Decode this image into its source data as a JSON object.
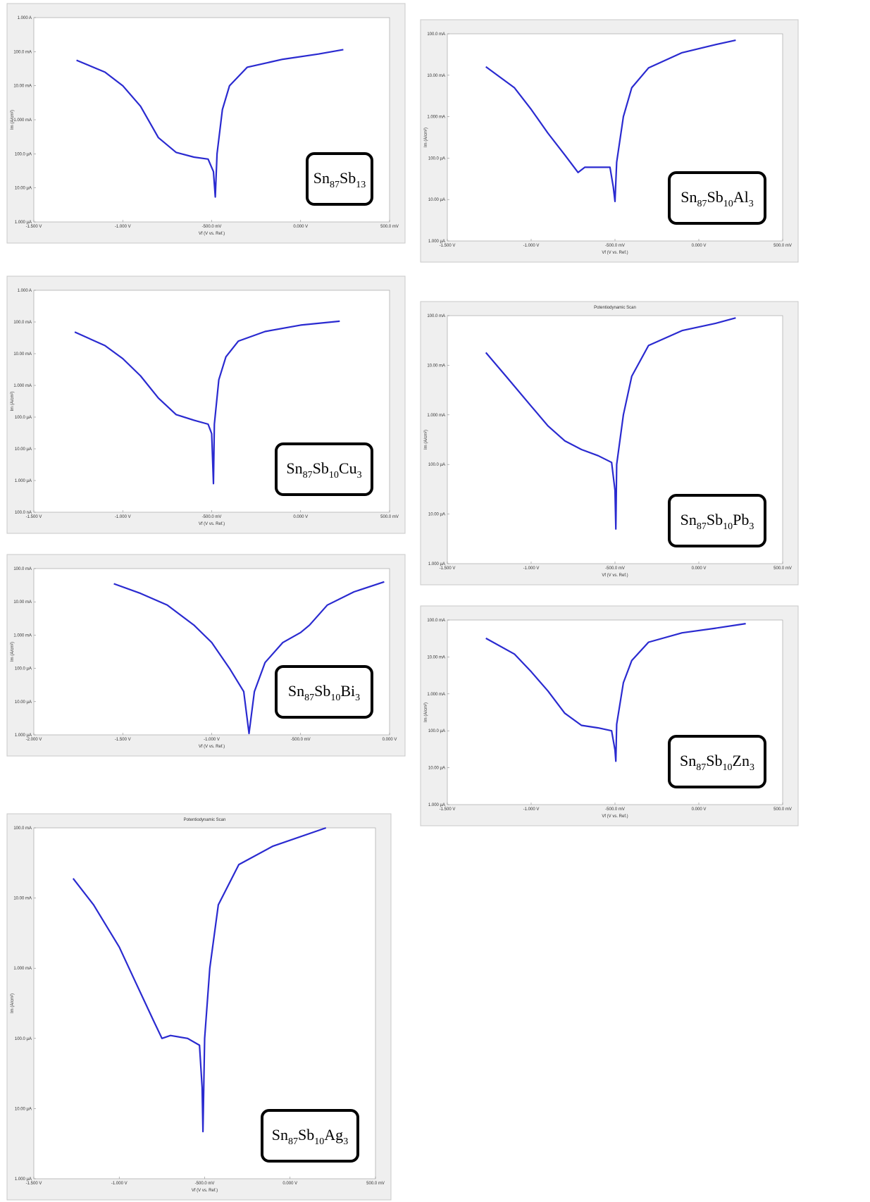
{
  "chart_data": [
    {
      "type": "line",
      "log_y": true,
      "grid": false,
      "color": "#2a2ad0",
      "xlabel": "Vf (V vs. Ref.)",
      "ylabel": "Im (A/cm²)",
      "x": [
        -1.26,
        -1.1,
        -1.0,
        -0.9,
        -0.8,
        -0.7,
        -0.6,
        -0.52,
        -0.49,
        -0.48,
        -0.47,
        -0.44,
        -0.4,
        -0.3,
        -0.1,
        0.1,
        0.24
      ],
      "values": [
        0.056,
        0.025,
        0.01,
        0.0025,
        0.0003,
        0.00011,
        8e-05,
        7e-05,
        3e-05,
        5.4e-06,
        0.0001,
        0.002,
        0.01,
        0.035,
        0.06,
        0.085,
        0.115
      ],
      "xlim": [
        -1.5,
        0.5
      ],
      "xticks": [
        {
          "value": -1.5,
          "label": "-1.500 V"
        },
        {
          "value": -1,
          "label": "-1.000 V"
        },
        {
          "value": -0.5,
          "label": "-500.0 mV"
        },
        {
          "value": 0,
          "label": "0.000 V"
        },
        {
          "value": 0.5,
          "label": "500.0 mV"
        }
      ],
      "ylim": [
        1e-06,
        1
      ],
      "yticks": [
        {
          "value": 1,
          "label": "1.000 A"
        },
        {
          "value": 0.1,
          "label": "100.0 mA"
        },
        {
          "value": 0.01,
          "label": "10.00 mA"
        },
        {
          "value": 0.001,
          "label": "1.000 mA"
        },
        {
          "value": 0.0001,
          "label": "100.0 µA"
        },
        {
          "value": 1e-05,
          "label": "10.00 µA"
        },
        {
          "value": 1e-06,
          "label": "1.000 µA"
        }
      ],
      "annotation": [
        {
          "text": "Sn",
          "sub": false
        },
        {
          "text": "87",
          "sub": true
        },
        {
          "text": "Sb",
          "sub": false
        },
        {
          "text": "13",
          "sub": true
        }
      ]
    },
    {
      "type": "line",
      "log_y": true,
      "grid": false,
      "color": "#2a2ad0",
      "xlabel": "Vf (V vs. Ref.)",
      "ylabel": "Im (A/cm²)",
      "x": [
        -1.27,
        -1.1,
        -1.0,
        -0.9,
        -0.8,
        -0.72,
        -0.68,
        -0.6,
        -0.53,
        -0.51,
        -0.5,
        -0.49,
        -0.45,
        -0.4,
        -0.3,
        -0.1,
        0.1,
        0.22
      ],
      "values": [
        0.016,
        0.005,
        0.0015,
        0.0004,
        0.00012,
        4.5e-05,
        6e-05,
        6e-05,
        6e-05,
        2e-05,
        9e-06,
        8e-05,
        0.001,
        0.005,
        0.015,
        0.035,
        0.055,
        0.07
      ],
      "xlim": [
        -1.5,
        0.5
      ],
      "xticks": [
        {
          "value": -1.5,
          "label": "-1.500 V"
        },
        {
          "value": -1,
          "label": "-1.000 V"
        },
        {
          "value": -0.5,
          "label": "-500.0 mV"
        },
        {
          "value": 0,
          "label": "0.000 V"
        },
        {
          "value": 0.5,
          "label": "500.0 mV"
        }
      ],
      "ylim": [
        1e-06,
        0.1
      ],
      "yticks": [
        {
          "value": 0.1,
          "label": "100.0 mA"
        },
        {
          "value": 0.01,
          "label": "10.00 mA"
        },
        {
          "value": 0.001,
          "label": "1.000 mA"
        },
        {
          "value": 0.0001,
          "label": "100.0 µA"
        },
        {
          "value": 1e-05,
          "label": "10.00 µA"
        },
        {
          "value": 1e-06,
          "label": "1.000 µA"
        }
      ],
      "annotation": [
        {
          "text": "Sn",
          "sub": false
        },
        {
          "text": "87",
          "sub": true
        },
        {
          "text": "Sb",
          "sub": false
        },
        {
          "text": "10",
          "sub": true
        },
        {
          "text": "Al",
          "sub": false
        },
        {
          "text": "3",
          "sub": true
        }
      ]
    },
    {
      "type": "line",
      "log_y": true,
      "grid": false,
      "color": "#2a2ad0",
      "xlabel": "Vf (V vs. Ref.)",
      "ylabel": "Im (A/cm²)",
      "x": [
        -1.27,
        -1.1,
        -1.0,
        -0.9,
        -0.8,
        -0.7,
        -0.6,
        -0.52,
        -0.5,
        -0.49,
        -0.485,
        -0.46,
        -0.42,
        -0.35,
        -0.2,
        0,
        0.22
      ],
      "values": [
        0.048,
        0.018,
        0.007,
        0.002,
        0.0004,
        0.00012,
        8e-05,
        6e-05,
        3e-05,
        8e-07,
        6e-05,
        0.0015,
        0.008,
        0.025,
        0.05,
        0.08,
        0.106
      ],
      "xlim": [
        -1.5,
        0.5
      ],
      "xticks": [
        {
          "value": -1.5,
          "label": "-1.500 V"
        },
        {
          "value": -1,
          "label": "-1.000 V"
        },
        {
          "value": -0.5,
          "label": "-500.0 mV"
        },
        {
          "value": 0,
          "label": "0.000 V"
        },
        {
          "value": 0.5,
          "label": "500.0 mV"
        }
      ],
      "ylim": [
        1e-07,
        1
      ],
      "yticks": [
        {
          "value": 1,
          "label": "1.000 A"
        },
        {
          "value": 0.1,
          "label": "100.0 mA"
        },
        {
          "value": 0.01,
          "label": "10.00 mA"
        },
        {
          "value": 0.001,
          "label": "1.000 mA"
        },
        {
          "value": 0.0001,
          "label": "100.0 µA"
        },
        {
          "value": 1e-05,
          "label": "10.00 µA"
        },
        {
          "value": 1e-06,
          "label": "1.000 µA"
        },
        {
          "value": 1e-07,
          "label": "100.0 nA"
        }
      ],
      "annotation": [
        {
          "text": "Sn",
          "sub": false
        },
        {
          "text": "87",
          "sub": true
        },
        {
          "text": "Sb",
          "sub": false
        },
        {
          "text": "10",
          "sub": true
        },
        {
          "text": "Cu",
          "sub": false
        },
        {
          "text": "3",
          "sub": true
        }
      ]
    },
    {
      "type": "line",
      "log_y": true,
      "grid": false,
      "color": "#2a2ad0",
      "title": "Potentiodynamic Scan",
      "xlabel": "Vf (V vs. Ref.)",
      "ylabel": "Im (A/cm²)",
      "x": [
        -1.27,
        -1.15,
        -1.0,
        -0.9,
        -0.8,
        -0.7,
        -0.6,
        -0.52,
        -0.5,
        -0.495,
        -0.49,
        -0.45,
        -0.4,
        -0.3,
        -0.1,
        0.1,
        0.22
      ],
      "values": [
        0.018,
        0.006,
        0.0015,
        0.0006,
        0.0003,
        0.0002,
        0.00015,
        0.00011,
        3e-05,
        5e-06,
        0.0001,
        0.001,
        0.006,
        0.025,
        0.05,
        0.07,
        0.09
      ],
      "xlim": [
        -1.5,
        0.5
      ],
      "xticks": [
        {
          "value": -1.5,
          "label": "-1.500 V"
        },
        {
          "value": -1,
          "label": "-1.000 V"
        },
        {
          "value": -0.5,
          "label": "-500.0 mV"
        },
        {
          "value": 0,
          "label": "0.000 V"
        },
        {
          "value": 0.5,
          "label": "500.0 mV"
        }
      ],
      "ylim": [
        1e-06,
        0.1
      ],
      "yticks": [
        {
          "value": 0.1,
          "label": "100.0 mA"
        },
        {
          "value": 0.01,
          "label": "10.00 mA"
        },
        {
          "value": 0.001,
          "label": "1.000 mA"
        },
        {
          "value": 0.0001,
          "label": "100.0 µA"
        },
        {
          "value": 1e-05,
          "label": "10.00 µA"
        },
        {
          "value": 1e-06,
          "label": "1.000 µA"
        }
      ],
      "annotation": [
        {
          "text": "Sn",
          "sub": false
        },
        {
          "text": "87",
          "sub": true
        },
        {
          "text": "Sb",
          "sub": false
        },
        {
          "text": "10",
          "sub": true
        },
        {
          "text": "Pb",
          "sub": false
        },
        {
          "text": "3",
          "sub": true
        }
      ]
    },
    {
      "type": "line",
      "log_y": true,
      "grid": false,
      "color": "#2a2ad0",
      "xlabel": "Vf (V vs. Ref.)",
      "ylabel": "Im (A/cm²)",
      "x": [
        -1.55,
        -1.4,
        -1.25,
        -1.1,
        -1.0,
        -0.9,
        -0.82,
        -0.79,
        -0.76,
        -0.7,
        -0.6,
        -0.5,
        -0.45,
        -0.35,
        -0.2,
        -0.03
      ],
      "values": [
        0.035,
        0.018,
        0.008,
        0.002,
        0.0006,
        0.0001,
        2e-05,
        1.1e-06,
        2e-05,
        0.00015,
        0.0006,
        0.0012,
        0.002,
        0.008,
        0.02,
        0.04
      ],
      "xlim": [
        -2,
        0
      ],
      "xticks": [
        {
          "value": -2,
          "label": "-2.000 V"
        },
        {
          "value": -1.5,
          "label": "-1.500 V"
        },
        {
          "value": -1,
          "label": "-1.000 V"
        },
        {
          "value": -0.5,
          "label": "-500.0 mV"
        },
        {
          "value": 0,
          "label": "0.000 V"
        }
      ],
      "ylim": [
        1e-06,
        0.1
      ],
      "yticks": [
        {
          "value": 0.1,
          "label": "100.0 mA"
        },
        {
          "value": 0.01,
          "label": "10.00 mA"
        },
        {
          "value": 0.001,
          "label": "1.000 mA"
        },
        {
          "value": 0.0001,
          "label": "100.0 µA"
        },
        {
          "value": 1e-05,
          "label": "10.00 µA"
        },
        {
          "value": 1e-06,
          "label": "1.000 µA"
        }
      ],
      "annotation": [
        {
          "text": "Sn",
          "sub": false
        },
        {
          "text": "87",
          "sub": true
        },
        {
          "text": "Sb",
          "sub": false
        },
        {
          "text": "10",
          "sub": true
        },
        {
          "text": "Bi",
          "sub": false
        },
        {
          "text": "3",
          "sub": true
        }
      ]
    },
    {
      "type": "line",
      "log_y": true,
      "grid": false,
      "color": "#2a2ad0",
      "xlabel": "Vf (V vs. Ref.)",
      "ylabel": "Im (A/cm²)",
      "x": [
        -1.27,
        -1.1,
        -1.0,
        -0.9,
        -0.8,
        -0.7,
        -0.6,
        -0.52,
        -0.5,
        -0.495,
        -0.49,
        -0.45,
        -0.4,
        -0.3,
        -0.1,
        0.1,
        0.28
      ],
      "values": [
        0.032,
        0.012,
        0.004,
        0.0012,
        0.0003,
        0.00014,
        0.00012,
        0.0001,
        3e-05,
        1.5e-05,
        0.00015,
        0.002,
        0.008,
        0.025,
        0.045,
        0.06,
        0.08
      ],
      "xlim": [
        -1.5,
        0.5
      ],
      "xticks": [
        {
          "value": -1.5,
          "label": "-1.500 V"
        },
        {
          "value": -1,
          "label": "-1.000 V"
        },
        {
          "value": -0.5,
          "label": "-500.0 mV"
        },
        {
          "value": 0,
          "label": "0.000 V"
        },
        {
          "value": 0.5,
          "label": "500.0 mV"
        }
      ],
      "ylim": [
        1e-06,
        0.1
      ],
      "yticks": [
        {
          "value": 0.1,
          "label": "100.0 mA"
        },
        {
          "value": 0.01,
          "label": "10.00 mA"
        },
        {
          "value": 0.001,
          "label": "1.000 mA"
        },
        {
          "value": 0.0001,
          "label": "100.0 µA"
        },
        {
          "value": 1e-05,
          "label": "10.00 µA"
        },
        {
          "value": 1e-06,
          "label": "1.000 µA"
        }
      ],
      "annotation": [
        {
          "text": "Sn",
          "sub": false
        },
        {
          "text": "87",
          "sub": true
        },
        {
          "text": "Sb",
          "sub": false
        },
        {
          "text": "10",
          "sub": true
        },
        {
          "text": "Zn",
          "sub": false
        },
        {
          "text": "3",
          "sub": true
        }
      ]
    },
    {
      "type": "line",
      "log_y": true,
      "grid": false,
      "color": "#2a2ad0",
      "title": "Potentiodynamic Scan",
      "xlabel": "Vf (V vs. Ref.)",
      "ylabel": "Im (A/cm²)",
      "x": [
        -1.27,
        -1.15,
        -1.0,
        -0.9,
        -0.8,
        -0.75,
        -0.7,
        -0.6,
        -0.53,
        -0.515,
        -0.51,
        -0.5,
        -0.47,
        -0.42,
        -0.3,
        -0.1,
        0.21
      ],
      "values": [
        0.019,
        0.008,
        0.002,
        0.0006,
        0.00018,
        0.0001,
        0.00011,
        0.0001,
        8e-05,
        2e-05,
        4.7e-06,
        0.0001,
        0.001,
        0.008,
        0.03,
        0.055,
        0.1
      ],
      "xlim": [
        -1.5,
        0.5
      ],
      "xticks": [
        {
          "value": -1.5,
          "label": "-1.500 V"
        },
        {
          "value": -1,
          "label": "-1.000 V"
        },
        {
          "value": -0.5,
          "label": "-500.0 mV"
        },
        {
          "value": 0,
          "label": "0.000 V"
        },
        {
          "value": 0.5,
          "label": "500.0 mV"
        }
      ],
      "ylim": [
        1e-06,
        0.1
      ],
      "yticks": [
        {
          "value": 0.1,
          "label": "100.0 mA"
        },
        {
          "value": 0.01,
          "label": "10.00 mA"
        },
        {
          "value": 0.001,
          "label": "1.000 mA"
        },
        {
          "value": 0.0001,
          "label": "100.0 µA"
        },
        {
          "value": 1e-05,
          "label": "10.00 µA"
        },
        {
          "value": 1e-06,
          "label": "1.000 µA"
        }
      ],
      "annotation": [
        {
          "text": "Sn",
          "sub": false
        },
        {
          "text": "87",
          "sub": true
        },
        {
          "text": "Sb",
          "sub": false
        },
        {
          "text": "10",
          "sub": true
        },
        {
          "text": "Ag",
          "sub": false
        },
        {
          "text": "3",
          "sub": true
        }
      ]
    }
  ]
}
